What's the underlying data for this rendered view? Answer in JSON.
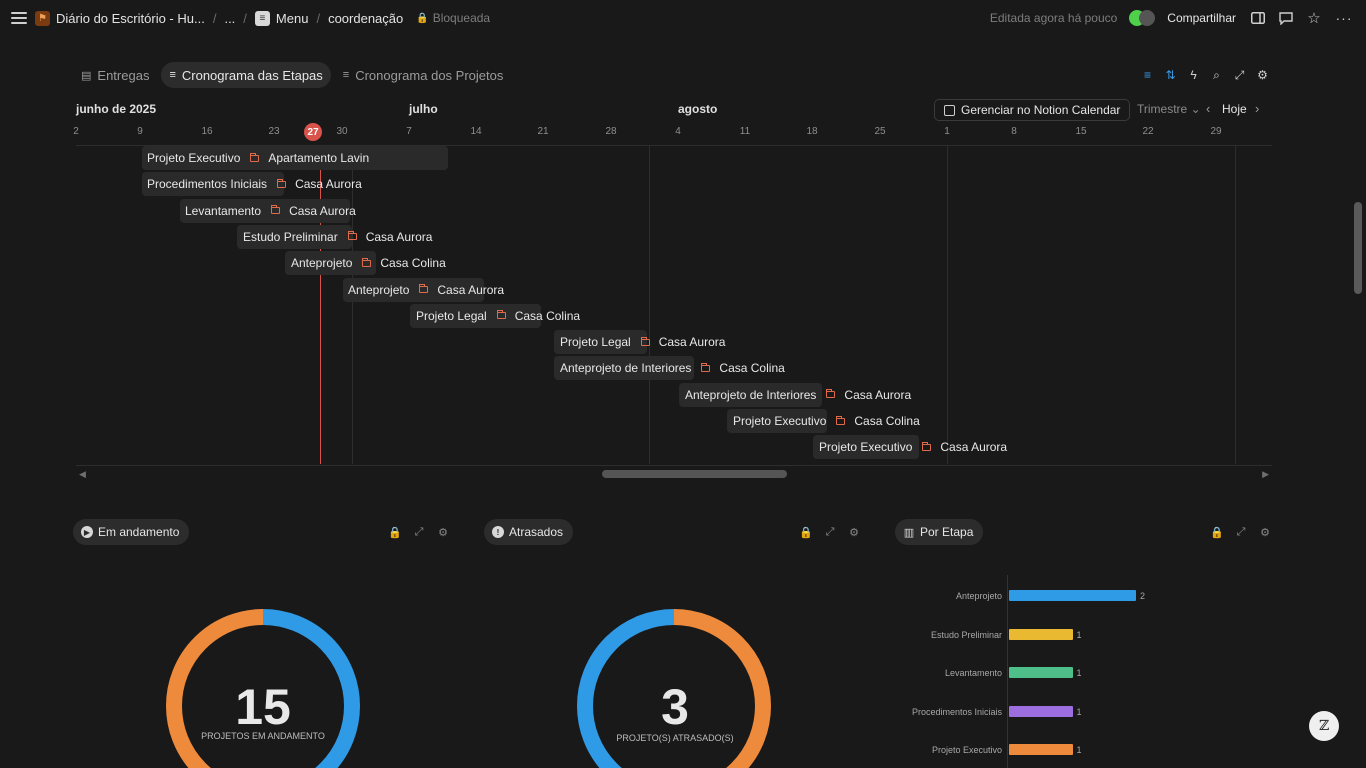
{
  "topbar": {
    "workspace_title": "Diário do Escritório - Hu...",
    "ellipsis": "...",
    "page_menu": "Menu",
    "page_current": "coordenação",
    "locked": "Bloqueada",
    "edited": "Editada agora há pouco",
    "share": "Compartilhar"
  },
  "tabs": [
    {
      "label": "Entregas",
      "icon": "table-icon"
    },
    {
      "label": "Cronograma das Etapas",
      "icon": "timeline-icon"
    },
    {
      "label": "Cronograma dos Projetos",
      "icon": "timeline-icon"
    }
  ],
  "timeline": {
    "months": [
      "junho de 2025",
      "julho",
      "agosto"
    ],
    "days": [
      "2",
      "9",
      "16",
      "23",
      "27",
      "30",
      "7",
      "14",
      "21",
      "28",
      "4",
      "11",
      "18",
      "25",
      "1",
      "8",
      "15",
      "22",
      "29"
    ],
    "today": "27",
    "manage_button": "Gerenciar no Notion Calendar",
    "range": "Trimestre",
    "today_button": "Hoje",
    "rows": [
      {
        "stage": "Projeto Executivo",
        "project": "Apartamento Lavin"
      },
      {
        "stage": "Procedimentos Iniciais",
        "project": "Casa Aurora"
      },
      {
        "stage": "Levantamento",
        "project": "Casa Aurora"
      },
      {
        "stage": "Estudo Preliminar",
        "project": "Casa Aurora"
      },
      {
        "stage": "Anteprojeto",
        "project": "Casa Colina"
      },
      {
        "stage": "Anteprojeto",
        "project": "Casa Aurora"
      },
      {
        "stage": "Projeto Legal",
        "project": "Casa Colina"
      },
      {
        "stage": "Projeto Legal",
        "project": "Casa Aurora"
      },
      {
        "stage": "Anteprojeto de Interiores",
        "project": "Casa Colina"
      },
      {
        "stage": "Anteprojeto de Interiores",
        "project": "Casa Aurora"
      },
      {
        "stage": "Projeto Executivo",
        "project": "Casa Colina"
      },
      {
        "stage": "Projeto Executivo",
        "project": "Casa Aurora"
      }
    ]
  },
  "widgets": {
    "in_progress": {
      "title": "Em andamento",
      "value": "15",
      "caption": "PROJETOS EM ANDAMENTO",
      "colors": [
        "#2f9be6",
        "#ee8a3c"
      ]
    },
    "late": {
      "title": "Atrasados",
      "value": "3",
      "caption": "PROJETO(S) ATRASADO(S)",
      "colors": [
        "#ee8a3c",
        "#2f9be6"
      ]
    },
    "by_stage": {
      "title": "Por Etapa",
      "bars": [
        {
          "label": "Anteprojeto",
          "value": 2,
          "value_text": "2",
          "color": "#2f9be6"
        },
        {
          "label": "Estudo Preliminar",
          "value": 1,
          "value_text": "1",
          "color": "#e8b931"
        },
        {
          "label": "Levantamento",
          "value": 1,
          "value_text": "1",
          "color": "#4fbf8a"
        },
        {
          "label": "Procedimentos Iniciais",
          "value": 1,
          "value_text": "1",
          "color": "#9d6ee0"
        },
        {
          "label": "Projeto Executivo",
          "value": 1,
          "value_text": "1",
          "color": "#ee8a3c"
        }
      ]
    }
  }
}
